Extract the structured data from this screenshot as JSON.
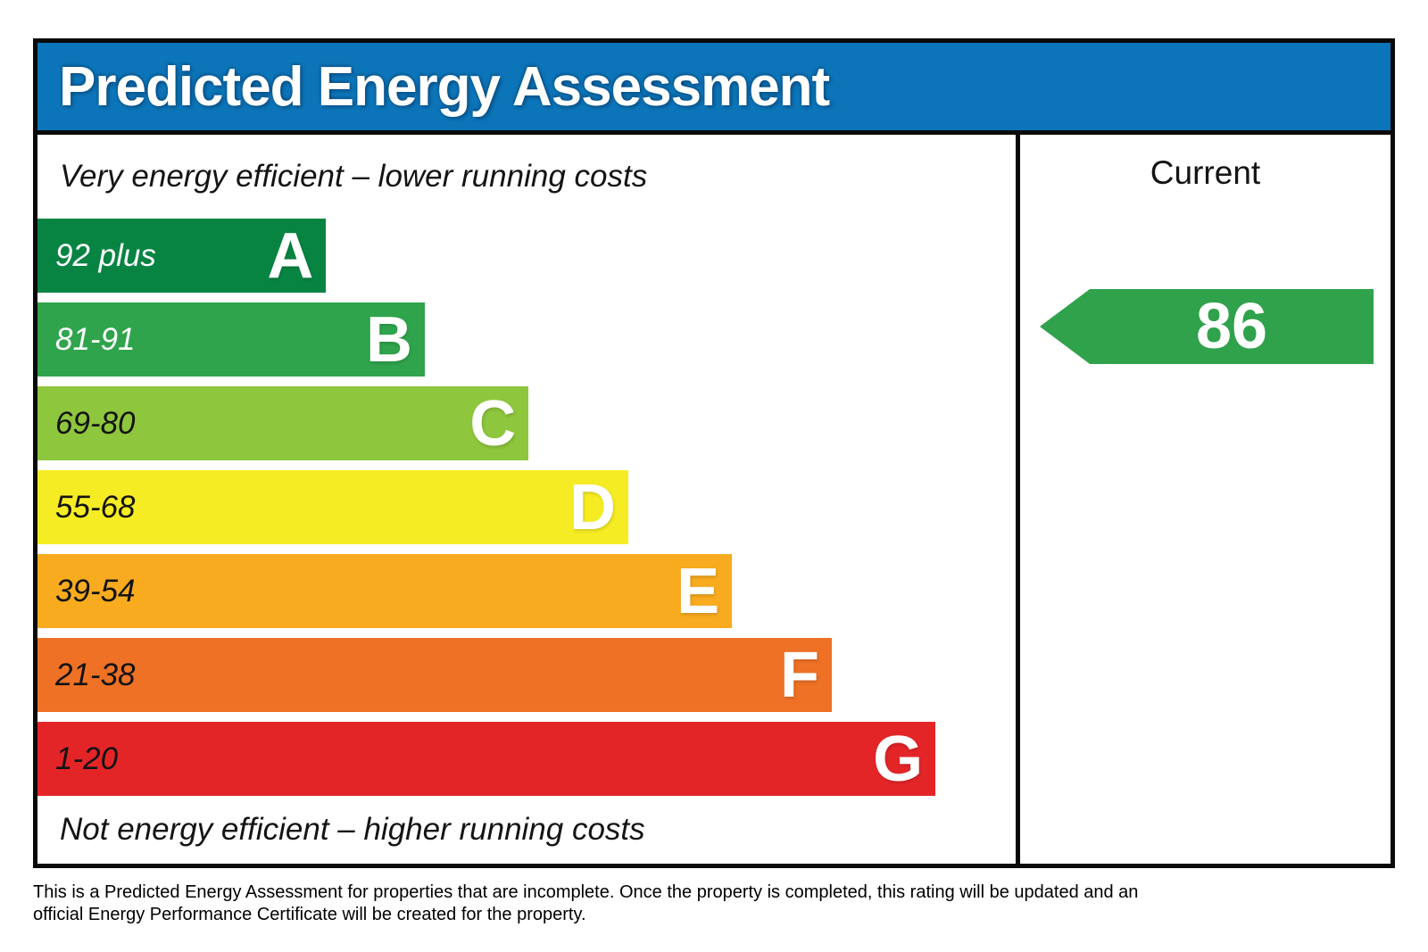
{
  "header": {
    "title": "Predicted Energy Assessment"
  },
  "captions": {
    "top": "Very energy efficient – lower running costs",
    "bottom": "Not energy efficient – higher running costs"
  },
  "bands": [
    {
      "letter": "A",
      "range": "92 plus",
      "color": "#088442",
      "range_text_color": "#ffffff",
      "width_pct": 29.5
    },
    {
      "letter": "B",
      "range": "81-91",
      "color": "#2FA44C",
      "range_text_color": "#ffffff",
      "width_pct": 39.6
    },
    {
      "letter": "C",
      "range": "69-80",
      "color": "#8EC63D",
      "range_text_color": "#141414",
      "width_pct": 50.2
    },
    {
      "letter": "D",
      "range": "55-68",
      "color": "#F6EC23",
      "range_text_color": "#141414",
      "width_pct": 60.4
    },
    {
      "letter": "E",
      "range": "39-54",
      "color": "#F8AB1E",
      "range_text_color": "#141414",
      "width_pct": 71.0
    },
    {
      "letter": "F",
      "range": "21-38",
      "color": "#EE7125",
      "range_text_color": "#141414",
      "width_pct": 81.2
    },
    {
      "letter": "G",
      "range": "1-20",
      "color": "#E42528",
      "range_text_color": "#141414",
      "width_pct": 91.8
    }
  ],
  "current": {
    "label": "Current",
    "value": "86",
    "band": "B",
    "arrow_color": "#2FA24B"
  },
  "footer": {
    "line1": "This is a Predicted Energy Assessment for properties that are incomplete. Once the property is completed, this rating will be updated and an",
    "line2": "official Energy Performance Certificate will be created for the property."
  },
  "colors": {
    "header_bg": "#0C75B9",
    "border": "#0a0a0a",
    "background": "#ffffff"
  },
  "chart_data": {
    "type": "bar",
    "orientation": "horizontal",
    "title": "Predicted Energy Assessment",
    "categories": [
      "A",
      "B",
      "C",
      "D",
      "E",
      "F",
      "G"
    ],
    "category_ranges": [
      "92 plus",
      "81-91",
      "69-80",
      "55-68",
      "39-54",
      "21-38",
      "1-20"
    ],
    "bar_relative_widths_pct": [
      29.5,
      39.6,
      50.2,
      60.4,
      71.0,
      81.2,
      91.8
    ],
    "bar_colors": [
      "#088442",
      "#2FA44C",
      "#8EC63D",
      "#F6EC23",
      "#F8AB1E",
      "#EE7125",
      "#E42528"
    ],
    "series": [
      {
        "name": "Current",
        "value": 86,
        "band": "B"
      }
    ],
    "top_annotation": "Very energy efficient – lower running costs",
    "bottom_annotation": "Not energy efficient – higher running costs",
    "legend_position": "right column"
  }
}
